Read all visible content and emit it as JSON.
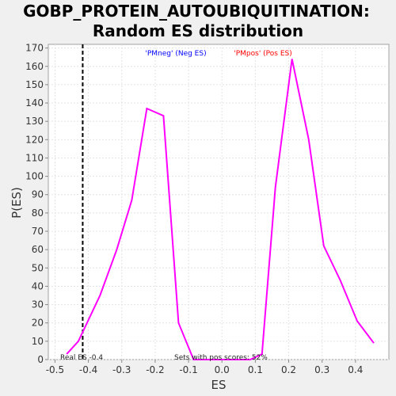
{
  "chart_data": {
    "type": "line",
    "title_line1": "GOBP_PROTEIN_AUTOUBIQUITINATION:",
    "title_line2": "Random ES distribution",
    "xlabel": "ES",
    "ylabel": "P(ES)",
    "xlim": [
      -0.52,
      0.5
    ],
    "ylim": [
      0,
      172
    ],
    "xticks": [
      -0.5,
      -0.4,
      -0.3,
      -0.2,
      -0.1,
      0.0,
      0.1,
      0.2,
      0.3,
      0.4
    ],
    "xtick_labels": [
      "-0.5",
      "-0.4",
      "-0.3",
      "-0.2",
      "-0.1",
      "0.0",
      "0.1",
      "0.2",
      "0.3",
      "0.4"
    ],
    "yticks": [
      0,
      10,
      20,
      30,
      40,
      50,
      60,
      70,
      80,
      90,
      100,
      110,
      120,
      130,
      140,
      150,
      160,
      170
    ],
    "ytick_labels": [
      "0",
      "10",
      "20",
      "30",
      "40",
      "50",
      "60",
      "70",
      "80",
      "90",
      "100",
      "110",
      "120",
      "130",
      "140",
      "150",
      "160",
      "170"
    ],
    "grid": true,
    "series": [
      {
        "color": "#ff00ff",
        "x": [
          -0.465,
          -0.43,
          -0.365,
          -0.315,
          -0.27,
          -0.225,
          -0.175,
          -0.13,
          -0.085,
          0.085,
          0.12,
          0.16,
          0.21,
          0.26,
          0.305,
          0.355,
          0.405,
          0.455
        ],
        "y": [
          3,
          10,
          35,
          60,
          87,
          137,
          133,
          20,
          0,
          0,
          3,
          94,
          164,
          120,
          62,
          43,
          21,
          9
        ]
      }
    ],
    "real_es": {
      "x": -0.417,
      "label": "Real ES -0.4",
      "color": "#000000"
    },
    "annotations": {
      "pos_fraction": "Sets with pos scores: 52%",
      "neg_legend": "'PMneg' (Neg ES)",
      "neg_color": "#0000ff",
      "pos_legend": "'PMpos' (Pos ES)",
      "pos_color": "#ff0000"
    }
  }
}
